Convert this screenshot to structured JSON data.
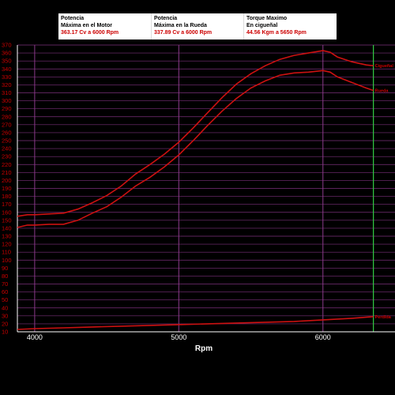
{
  "info_table": [
    {
      "line1": "Potencia",
      "line2": "Máxima en el Motor",
      "value": "363.17 Cv a  6000 Rpm"
    },
    {
      "line1": "Potencia",
      "line2": "Máxima en la Rueda",
      "value": "337.89 Cv a  6000 Rpm"
    },
    {
      "line1": "Torque Maximo",
      "line2": "En cigueñal",
      "value": "44.56 Kgm a  5650 Rpm"
    }
  ],
  "colors": {
    "curve": "#cc1111",
    "grid_h": "#7a2f7a",
    "grid_v": "#8a3a8a",
    "marker": "#33cc44",
    "axis": "#ffffff"
  },
  "chart_data": {
    "type": "line",
    "xlabel": "Rpm",
    "ylabel": "",
    "xlim": [
      3880,
      6500
    ],
    "ylim": [
      10,
      370
    ],
    "xticks": [
      4000,
      5000,
      6000
    ],
    "yticks": [
      10,
      20,
      30,
      40,
      50,
      60,
      70,
      80,
      90,
      100,
      110,
      120,
      130,
      140,
      150,
      160,
      170,
      180,
      190,
      200,
      210,
      220,
      230,
      240,
      250,
      260,
      270,
      280,
      290,
      300,
      310,
      320,
      330,
      340,
      350,
      360,
      370
    ],
    "vertical_marker_x": 6350,
    "grid": true,
    "series": [
      {
        "name": "Cigueñal",
        "x": [
          3880,
          3950,
          4000,
          4100,
          4200,
          4300,
          4400,
          4500,
          4600,
          4700,
          4800,
          4900,
          5000,
          5100,
          5200,
          5300,
          5400,
          5500,
          5600,
          5700,
          5800,
          5900,
          6000,
          6050,
          6100,
          6200,
          6300,
          6350
        ],
        "y": [
          155,
          157,
          157,
          158,
          159,
          164,
          172,
          181,
          193,
          208,
          220,
          233,
          248,
          266,
          285,
          304,
          321,
          334,
          344,
          352,
          357,
          360,
          363,
          361,
          355,
          349,
          345,
          344
        ]
      },
      {
        "name": "Rueda",
        "x": [
          3880,
          3950,
          4000,
          4100,
          4200,
          4300,
          4400,
          4500,
          4600,
          4700,
          4800,
          4900,
          5000,
          5100,
          5200,
          5300,
          5400,
          5500,
          5600,
          5700,
          5800,
          5900,
          6000,
          6050,
          6100,
          6200,
          6300,
          6350
        ],
        "y": [
          141,
          144,
          144,
          145,
          145,
          150,
          159,
          167,
          179,
          193,
          204,
          217,
          232,
          250,
          269,
          287,
          303,
          316,
          325,
          332,
          335,
          336,
          338,
          336,
          330,
          323,
          316,
          313
        ]
      },
      {
        "name": "Perdida",
        "x": [
          3880,
          4000,
          4200,
          4400,
          4600,
          4800,
          5000,
          5200,
          5400,
          5600,
          5800,
          6000,
          6200,
          6350
        ],
        "y": [
          13,
          14,
          15,
          16,
          17,
          18,
          19,
          20,
          21,
          22,
          23,
          25,
          27,
          29
        ]
      }
    ]
  }
}
